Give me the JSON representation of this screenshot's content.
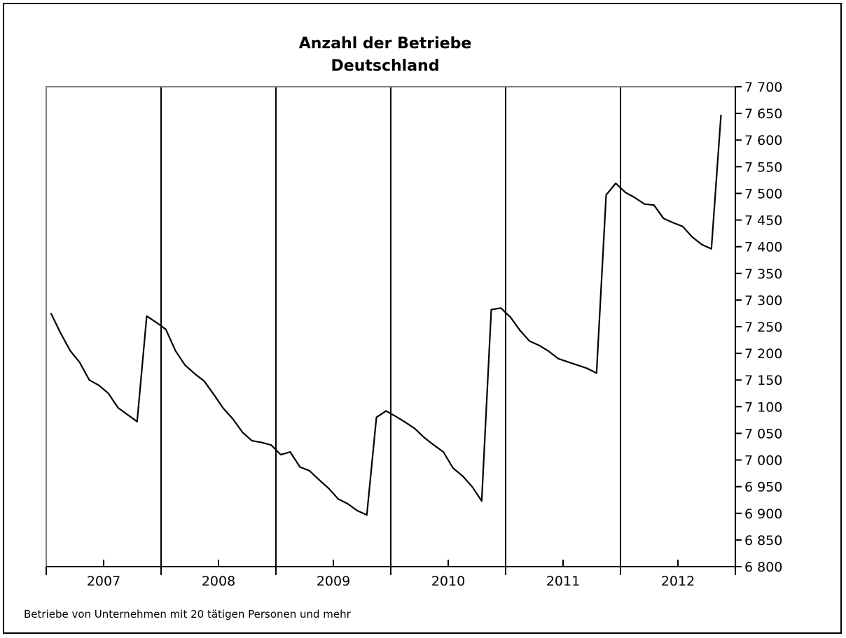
{
  "chart_data": {
    "type": "line",
    "title": "Anzahl der Betriebe",
    "subtitle": "Deutschland",
    "footnote": "Betriebe von Unternehmen mit 20 tätigen Personen und mehr",
    "ylim": [
      6800,
      7700
    ],
    "ystep": 50,
    "y_axis_side": "right",
    "y_tick_labels": [
      "6 800",
      "6 850",
      "6 900",
      "6 950",
      "7 000",
      "7 050",
      "7 100",
      "7 150",
      "7 200",
      "7 250",
      "7 300",
      "7 350",
      "7 400",
      "7 450",
      "7 500",
      "7 550",
      "7 600",
      "7 650",
      "7 700"
    ],
    "years": [
      "2007",
      "2008",
      "2009",
      "2010",
      "2011",
      "2012"
    ],
    "year_gridlines": true,
    "series": [
      {
        "values": [
          7275,
          7238,
          7205,
          7183,
          7150,
          7140,
          7125,
          7098,
          7085,
          7072,
          7270,
          7258,
          7245,
          7205,
          7178,
          7162,
          7148,
          7123,
          7097,
          7077,
          7052,
          7036,
          7033,
          7028,
          7010,
          7015,
          6987,
          6980,
          6963,
          6947,
          6927,
          6918,
          6905,
          6897,
          7080,
          7092,
          7082,
          7071,
          7059,
          7042,
          7028,
          7015,
          6985,
          6970,
          6950,
          6923,
          7282,
          7285,
          7268,
          7243,
          7223,
          7215,
          7204,
          7190,
          7184,
          7178,
          7172,
          7163,
          7497,
          7519,
          7502,
          7492,
          7480,
          7478,
          7453,
          7445,
          7438,
          7418,
          7404,
          7396,
          7647
        ]
      }
    ]
  }
}
